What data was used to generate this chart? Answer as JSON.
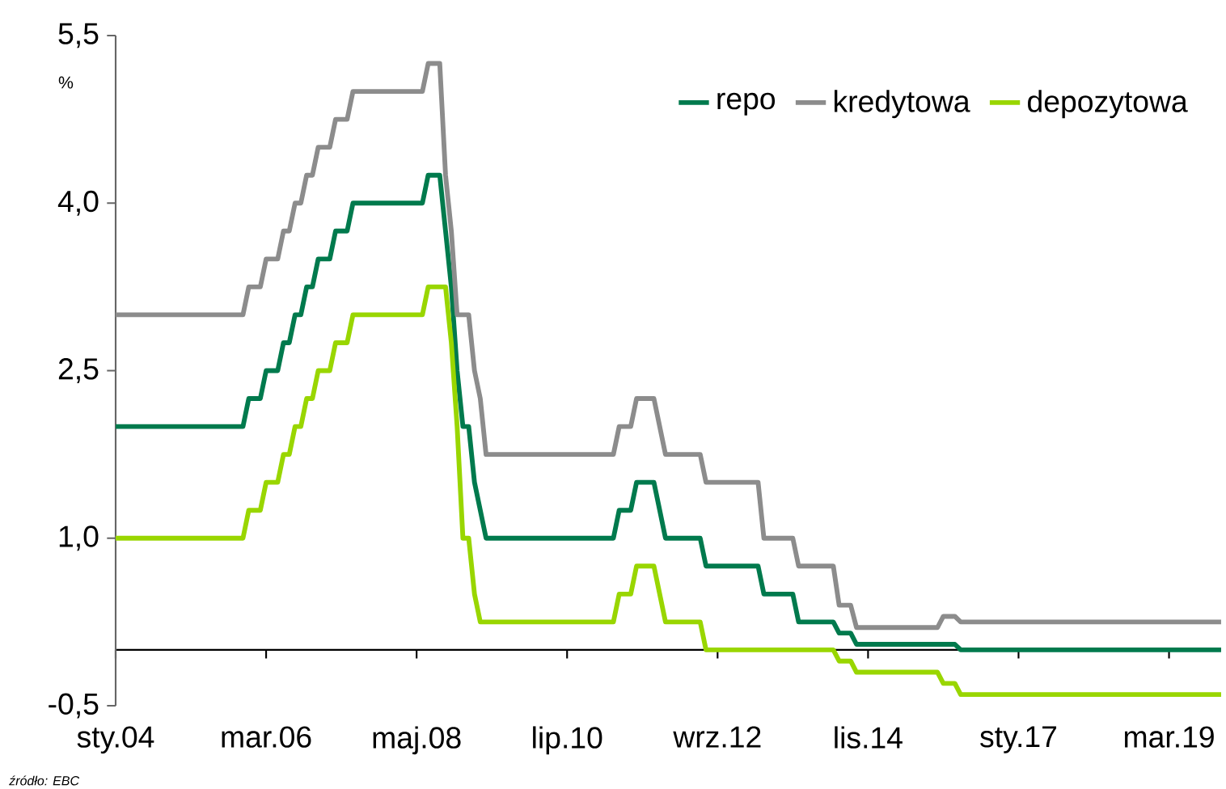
{
  "chart_data": {
    "type": "line",
    "ylabel": "%",
    "legend": "top right",
    "annotations": [
      "źródło: EBC"
    ],
    "xlim": [
      "2004-01",
      "2019-12"
    ],
    "xticks": [
      {
        "value": "2004-01",
        "label": "sty.04"
      },
      {
        "value": "2006-03",
        "label": "mar.06"
      },
      {
        "value": "2008-05",
        "label": "maj.08"
      },
      {
        "value": "2010-07",
        "label": "lip.10"
      },
      {
        "value": "2012-09",
        "label": "wrz.12"
      },
      {
        "value": "2014-11",
        "label": "lis.14"
      },
      {
        "value": "2017-01",
        "label": "sty.17"
      },
      {
        "value": "2019-03",
        "label": "mar.19"
      }
    ],
    "ylim": [
      -0.5,
      5.5
    ],
    "yticks": [
      {
        "value": -0.5,
        "label": "-0,5"
      },
      {
        "value": 1.0,
        "label": "1,0"
      },
      {
        "value": 2.5,
        "label": "2,5"
      },
      {
        "value": 4.0,
        "label": "4,0"
      },
      {
        "value": 5.5,
        "label": "5,5"
      }
    ],
    "series": [
      {
        "name": "repo",
        "color": "#007a4d",
        "x": [
          "2004-01",
          "2005-11",
          "2005-12",
          "2006-02",
          "2006-03",
          "2006-05",
          "2006-06",
          "2006-07",
          "2006-08",
          "2006-09",
          "2006-10",
          "2006-11",
          "2006-12",
          "2007-02",
          "2007-03",
          "2007-05",
          "2007-06",
          "2008-06",
          "2008-07",
          "2008-09",
          "2008-10",
          "2008-11",
          "2008-12",
          "2009-01",
          "2009-02",
          "2009-03",
          "2009-04",
          "2009-05",
          "2011-03",
          "2011-04",
          "2011-06",
          "2011-07",
          "2011-10",
          "2011-11",
          "2011-12",
          "2012-06",
          "2012-07",
          "2013-04",
          "2013-05",
          "2013-10",
          "2013-11",
          "2014-05",
          "2014-06",
          "2014-08",
          "2014-09",
          "2016-02",
          "2016-03",
          "2019-12"
        ],
        "values": [
          2.0,
          2.0,
          2.25,
          2.25,
          2.5,
          2.5,
          2.75,
          2.75,
          3.0,
          3.0,
          3.25,
          3.25,
          3.5,
          3.5,
          3.75,
          3.75,
          4.0,
          4.0,
          4.25,
          4.25,
          3.75,
          3.25,
          2.5,
          2.0,
          2.0,
          1.5,
          1.25,
          1.0,
          1.0,
          1.25,
          1.25,
          1.5,
          1.5,
          1.25,
          1.0,
          1.0,
          0.75,
          0.75,
          0.5,
          0.5,
          0.25,
          0.25,
          0.15,
          0.15,
          0.05,
          0.05,
          0.0,
          0.0
        ]
      },
      {
        "name": "kredytowa",
        "color": "#8c8c8c",
        "x": [
          "2004-01",
          "2005-11",
          "2005-12",
          "2006-02",
          "2006-03",
          "2006-05",
          "2006-06",
          "2006-07",
          "2006-08",
          "2006-09",
          "2006-10",
          "2006-11",
          "2006-12",
          "2007-02",
          "2007-03",
          "2007-05",
          "2007-06",
          "2008-06",
          "2008-07",
          "2008-09",
          "2008-10",
          "2008-11",
          "2008-12",
          "2009-02",
          "2009-03",
          "2009-04",
          "2009-05",
          "2011-03",
          "2011-04",
          "2011-06",
          "2011-07",
          "2011-10",
          "2011-11",
          "2011-12",
          "2012-06",
          "2012-07",
          "2013-04",
          "2013-05",
          "2013-10",
          "2013-11",
          "2014-05",
          "2014-06",
          "2014-08",
          "2014-09",
          "2015-11",
          "2015-12",
          "2016-02",
          "2016-03",
          "2019-12"
        ],
        "values": [
          3.0,
          3.0,
          3.25,
          3.25,
          3.5,
          3.5,
          3.75,
          3.75,
          4.0,
          4.0,
          4.25,
          4.25,
          4.5,
          4.5,
          4.75,
          4.75,
          5.0,
          5.0,
          5.25,
          5.25,
          4.25,
          3.75,
          3.0,
          3.0,
          2.5,
          2.25,
          1.75,
          1.75,
          2.0,
          2.0,
          2.25,
          2.25,
          2.0,
          1.75,
          1.75,
          1.5,
          1.5,
          1.0,
          1.0,
          0.75,
          0.75,
          0.4,
          0.4,
          0.2,
          0.2,
          0.3,
          0.3,
          0.25,
          0.25
        ]
      },
      {
        "name": "depozytowa",
        "color": "#99d600",
        "x": [
          "2004-01",
          "2005-11",
          "2005-12",
          "2006-02",
          "2006-03",
          "2006-05",
          "2006-06",
          "2006-07",
          "2006-08",
          "2006-09",
          "2006-10",
          "2006-11",
          "2006-12",
          "2007-02",
          "2007-03",
          "2007-05",
          "2007-06",
          "2008-06",
          "2008-07",
          "2008-10",
          "2008-11",
          "2008-12",
          "2009-01",
          "2009-02",
          "2009-03",
          "2009-04",
          "2011-03",
          "2011-04",
          "2011-06",
          "2011-07",
          "2011-10",
          "2011-11",
          "2011-12",
          "2012-06",
          "2012-07",
          "2014-05",
          "2014-06",
          "2014-08",
          "2014-09",
          "2015-11",
          "2015-12",
          "2016-02",
          "2016-03",
          "2019-12"
        ],
        "values": [
          1.0,
          1.0,
          1.25,
          1.25,
          1.5,
          1.5,
          1.75,
          1.75,
          2.0,
          2.0,
          2.25,
          2.25,
          2.5,
          2.5,
          2.75,
          2.75,
          3.0,
          3.0,
          3.25,
          3.25,
          2.75,
          2.0,
          1.0,
          1.0,
          0.5,
          0.25,
          0.25,
          0.5,
          0.5,
          0.75,
          0.75,
          0.5,
          0.25,
          0.25,
          0.0,
          0.0,
          -0.1,
          -0.1,
          -0.2,
          -0.2,
          -0.3,
          -0.3,
          -0.4,
          -0.4
        ]
      }
    ]
  }
}
